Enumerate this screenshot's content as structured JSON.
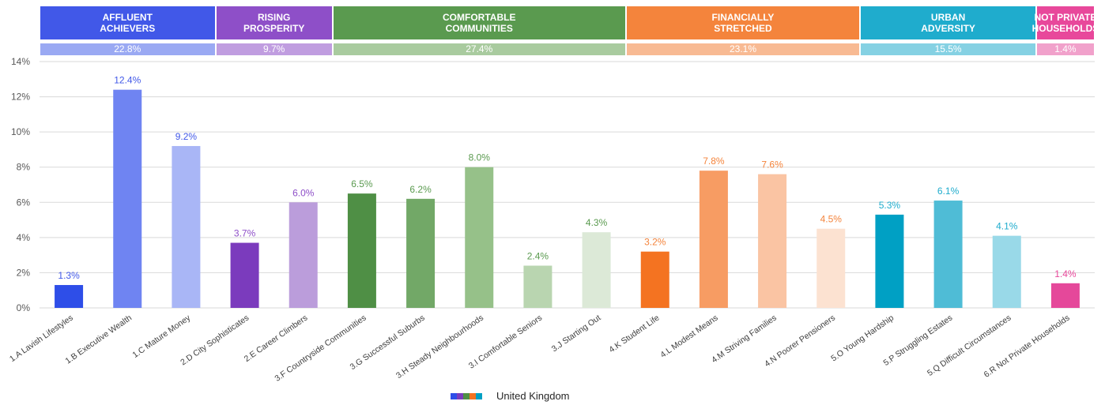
{
  "chart_data": {
    "type": "bar",
    "groups": [
      {
        "name": "AFFLUENT\nACHIEVERS",
        "color": "#4158e8",
        "light": "#9aa9f3",
        "value": 22.8,
        "value_label": "22.8%"
      },
      {
        "name": "RISING\nPROSPERITY",
        "color": "#8e4fc8",
        "light": "#c09de0",
        "value": 9.7,
        "value_label": "9.7%"
      },
      {
        "name": "COMFORTABLE\nCOMMUNITIES",
        "color": "#5a9a4f",
        "light": "#a9cb9f",
        "value": 27.4,
        "value_label": "27.4%"
      },
      {
        "name": "FINANCIALLY\nSTRETCHED",
        "color": "#f4843c",
        "light": "#f8ba93",
        "value": 23.1,
        "value_label": "23.1%"
      },
      {
        "name": "URBAN\nADVERSITY",
        "color": "#1faccd",
        "light": "#85d1e3",
        "value": 15.5,
        "value_label": "15.5%"
      },
      {
        "name": "NOT PRIVATE\nHOUSEHOLDS",
        "color": "#e8489b",
        "light": "#f1a1cb",
        "value": 1.4,
        "value_label": "1.4%"
      }
    ],
    "categories": [
      "1.A Lavish Lifestyles",
      "1.B Executive Wealth",
      "1.C Mature Money",
      "2.D City Sophisticates",
      "2.E Career Climbers",
      "3.F Countryside Communities",
      "3.G Successful Suburbs",
      "3.H Steady Neighbourhoods",
      "3.I Comfortable Seniors",
      "3.J Starting Out",
      "4.K Student Life",
      "4.L Modest Means",
      "4.M Striving Families",
      "4.N Poorer Pensioners",
      "5.O Young Hardship",
      "5.P Struggling Estates",
      "5.Q Difficult Circumstances",
      "6.R Not Private Households"
    ],
    "series": [
      {
        "name": "United Kingdom",
        "values": [
          1.3,
          12.4,
          9.2,
          3.7,
          6.0,
          6.5,
          6.2,
          8.0,
          2.4,
          4.3,
          3.2,
          7.8,
          7.6,
          4.5,
          5.3,
          6.1,
          4.1,
          1.4
        ],
        "value_labels": [
          "1.3%",
          "12.4%",
          "9.2%",
          "3.7%",
          "6.0%",
          "6.5%",
          "6.2%",
          "8.0%",
          "2.4%",
          "4.3%",
          "3.2%",
          "7.8%",
          "7.6%",
          "4.5%",
          "5.3%",
          "6.1%",
          "4.1%",
          "1.4%"
        ],
        "colors": [
          "#2e4ee8",
          "#6f84f2",
          "#a9b6f6",
          "#7b3bbd",
          "#bb9ddb",
          "#4f8f45",
          "#72a867",
          "#96c189",
          "#b9d5b0",
          "#dce9d7",
          "#f47321",
          "#f79c63",
          "#fac4a3",
          "#fce2d1",
          "#00a0c4",
          "#4fbcd6",
          "#99d9e8",
          "#e5489a"
        ]
      }
    ],
    "ylim": [
      0,
      14
    ],
    "yticks": [
      {
        "value": 0,
        "label": "0%"
      },
      {
        "value": 2,
        "label": "2%"
      },
      {
        "value": 4,
        "label": "4%"
      },
      {
        "value": 6,
        "label": "6%"
      },
      {
        "value": 8,
        "label": "8%"
      },
      {
        "value": 10,
        "label": "10%"
      },
      {
        "value": 12,
        "label": "12%"
      },
      {
        "value": 14,
        "label": "14%"
      }
    ],
    "grid": true
  }
}
